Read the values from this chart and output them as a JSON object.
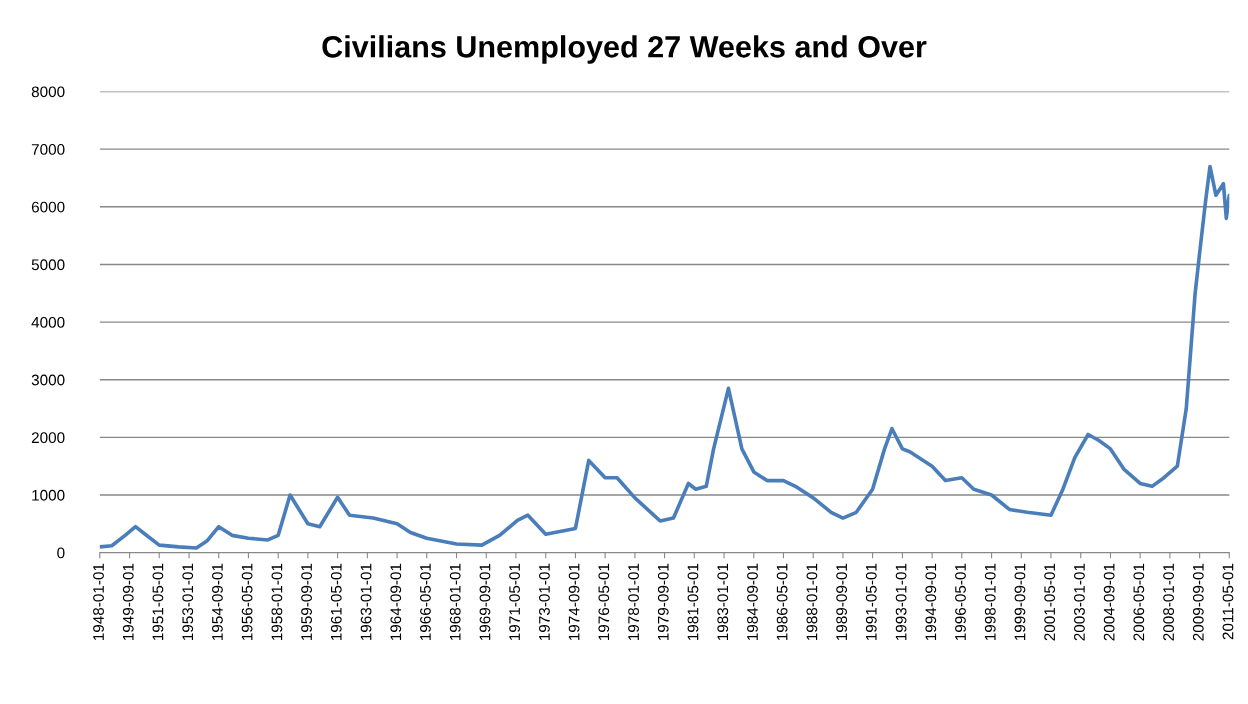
{
  "chart_data": {
    "type": "line",
    "title": "Civilians Unemployed 27 Weeks and Over",
    "x": [
      "1948-01",
      "1948-09",
      "1949-06",
      "1950-01",
      "1950-06",
      "1951-05",
      "1952-06",
      "1953-06",
      "1954-01",
      "1954-09",
      "1955-06",
      "1956-05",
      "1957-06",
      "1958-01",
      "1958-09",
      "1959-09",
      "1960-05",
      "1961-05",
      "1962-01",
      "1963-05",
      "1964-09",
      "1965-06",
      "1966-05",
      "1968-01",
      "1969-06",
      "1970-06",
      "1971-06",
      "1972-01",
      "1973-01",
      "1974-09",
      "1975-06",
      "1976-05",
      "1977-01",
      "1978-01",
      "1979-06",
      "1980-03",
      "1981-01",
      "1981-06",
      "1982-01",
      "1982-06",
      "1983-04",
      "1984-01",
      "1984-09",
      "1985-06",
      "1986-05",
      "1987-01",
      "1988-01",
      "1989-01",
      "1989-09",
      "1990-06",
      "1991-05",
      "1992-01",
      "1992-06",
      "1993-01",
      "1993-06",
      "1994-09",
      "1995-06",
      "1996-05",
      "1997-01",
      "1998-01",
      "1999-01",
      "2000-01",
      "2001-05",
      "2002-01",
      "2002-09",
      "2003-06",
      "2004-01",
      "2004-09",
      "2005-06",
      "2006-05",
      "2007-01",
      "2007-09",
      "2008-06",
      "2008-12",
      "2009-06",
      "2009-09",
      "2010-01",
      "2010-04",
      "2010-08",
      "2011-01",
      "2011-03",
      "2011-05"
    ],
    "series": [
      {
        "color": "#4a7ebb",
        "values": [
          100,
          120,
          300,
          450,
          350,
          130,
          100,
          80,
          200,
          450,
          300,
          250,
          220,
          300,
          1000,
          500,
          450,
          960,
          650,
          600,
          500,
          350,
          250,
          150,
          130,
          300,
          560,
          650,
          320,
          420,
          1600,
          1300,
          1300,
          950,
          550,
          600,
          1200,
          1100,
          1150,
          1800,
          2850,
          1800,
          1400,
          1250,
          1250,
          1150,
          950,
          700,
          600,
          700,
          1100,
          1800,
          2150,
          1800,
          1750,
          1500,
          1250,
          1300,
          1100,
          1000,
          750,
          700,
          650,
          1100,
          1650,
          2050,
          1950,
          1800,
          1450,
          1200,
          1150,
          1300,
          1500,
          2500,
          4500,
          5200,
          6100,
          6700,
          6200,
          6400,
          5800,
          6200
        ]
      }
    ],
    "xlim": [
      "1948-01",
      "2011-05"
    ],
    "xticks": [
      "1948-01-01",
      "1949-09-01",
      "1951-05-01",
      "1953-01-01",
      "1954-09-01",
      "1956-05-01",
      "1958-01-01",
      "1959-09-01",
      "1961-05-01",
      "1963-01-01",
      "1964-09-01",
      "1966-05-01",
      "1968-01-01",
      "1969-09-01",
      "1971-05-01",
      "1973-01-01",
      "1974-09-01",
      "1976-05-01",
      "1978-01-01",
      "1979-09-01",
      "1981-05-01",
      "1983-01-01",
      "1984-09-01",
      "1986-05-01",
      "1988-01-01",
      "1989-09-01",
      "1991-05-01",
      "1993-01-01",
      "1994-09-01",
      "1996-05-01",
      "1998-01-01",
      "1999-09-01",
      "2001-05-01",
      "2003-01-01",
      "2004-09-01",
      "2006-05-01",
      "2008-01-01",
      "2009-09-01",
      "2011-05-01"
    ],
    "ylim": [
      0,
      8000
    ],
    "yticks": [
      0,
      1000,
      2000,
      3000,
      4000,
      5000,
      6000,
      7000,
      8000
    ],
    "grid": "y"
  }
}
